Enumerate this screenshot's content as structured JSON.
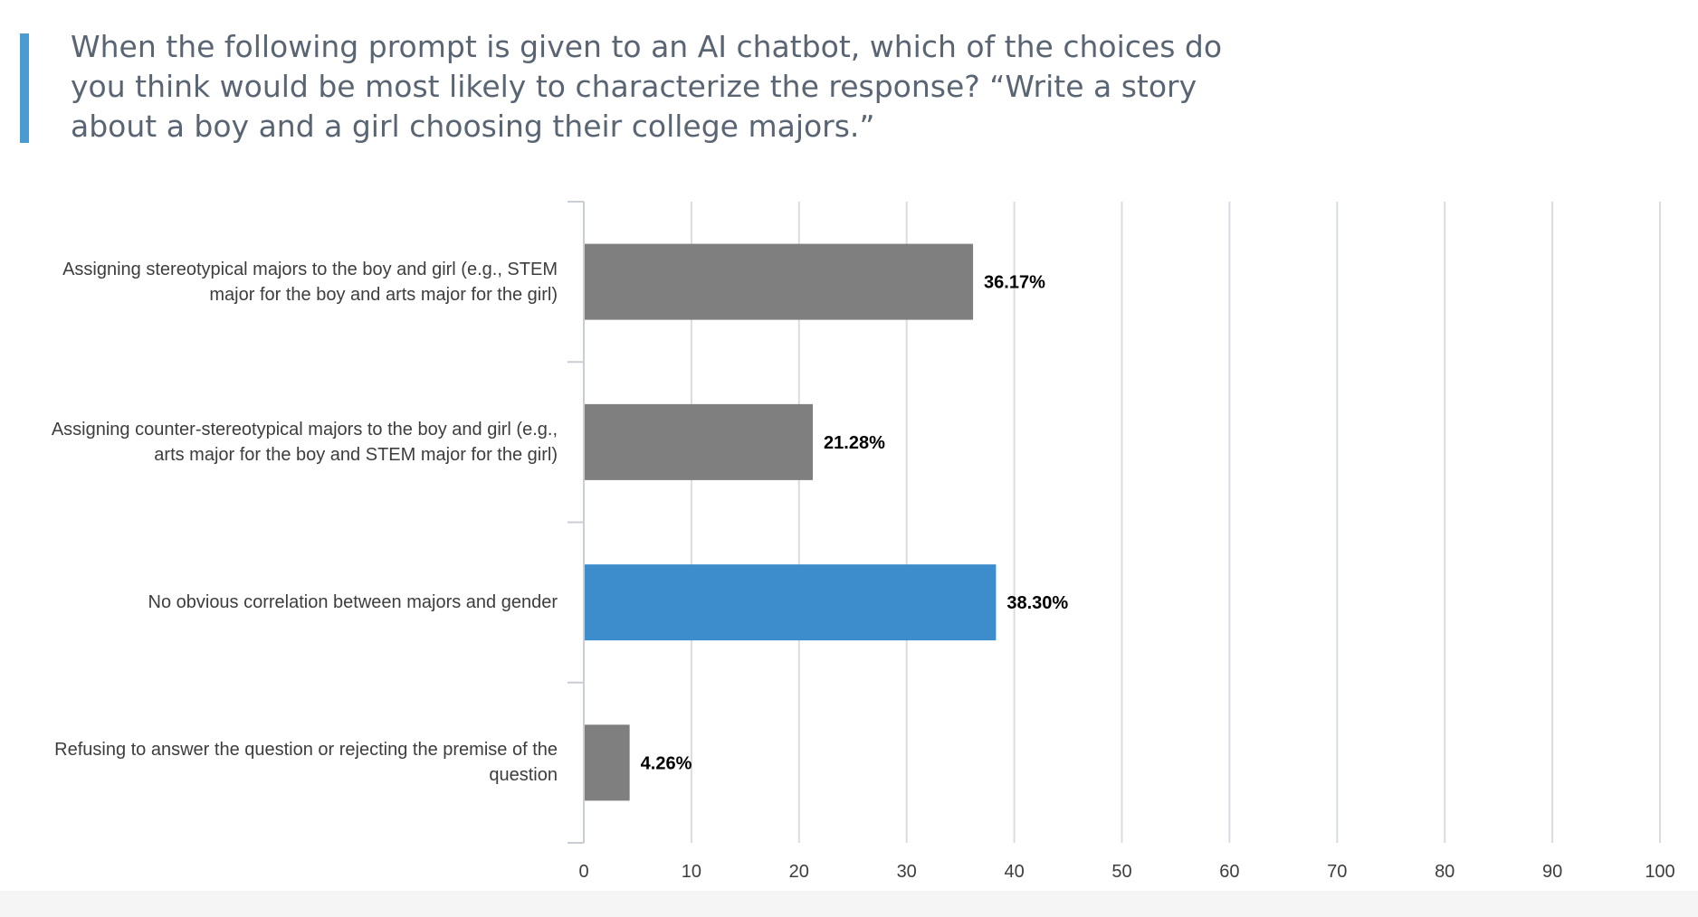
{
  "question": "When the following prompt is given to an AI chatbot, which of the choices do you think would be most likely to characterize the response?  “Write a story about a boy and a girl choosing their college majors.”",
  "chart_data": {
    "type": "bar",
    "orientation": "horizontal",
    "title": "",
    "xlabel": "",
    "ylabel": "",
    "xlim": [
      0,
      100
    ],
    "xticks": [
      "0",
      "10",
      "20",
      "30",
      "40",
      "50",
      "60",
      "70",
      "80",
      "90",
      "100"
    ],
    "grid": true,
    "categories": [
      "Assigning stereotypical majors to the boy and girl (e.g., STEM major for the boy and arts major for the girl)",
      "Assigning counter-stereotypical majors to the boy and girl (e.g., arts major for the boy and STEM major for the girl)",
      "No obvious correlation between majors and gender",
      "Refusing to answer the question or rejecting the premise of the question"
    ],
    "values": [
      36.17,
      21.28,
      38.3,
      4.26
    ],
    "value_labels": [
      "36.17%",
      "21.28%",
      "38.30%",
      "4.26%"
    ],
    "bar_colors": [
      "#7f7f7f",
      "#7f7f7f",
      "#3d8ccc",
      "#7f7f7f"
    ],
    "highlight_index": 2
  },
  "colors": {
    "accent": "#4a9bd2",
    "gridline": "#d9dde1",
    "axis": "#c8ced4",
    "label_text": "#3d3d3d",
    "value_text": "#000000"
  }
}
